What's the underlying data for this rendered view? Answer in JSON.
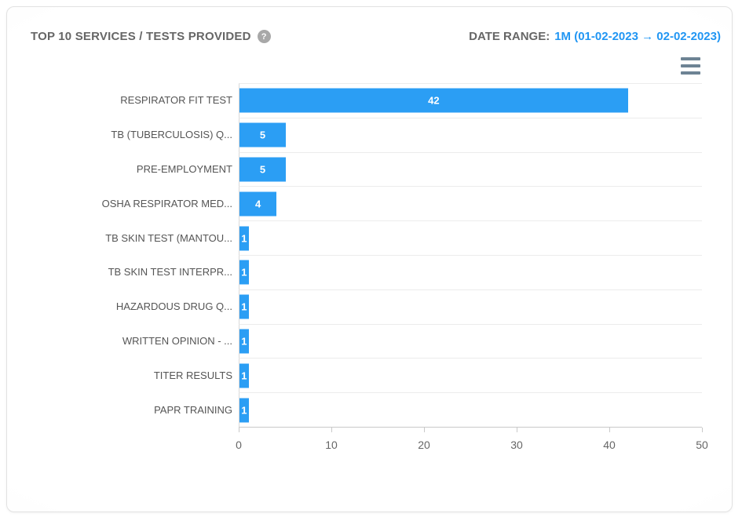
{
  "header": {
    "title": "TOP 10 SERVICES / TESTS PROVIDED",
    "help_icon": "?",
    "date_range_label": "DATE RANGE:",
    "date_range_value": "1M (01-02-2023 → 02-02-2023)"
  },
  "icons": {
    "help": "question-mark-circle",
    "context_menu": "hamburger-menu"
  },
  "colors": {
    "bar": "#2b9ef4",
    "accent_text": "#2196f3",
    "title_text": "#666666",
    "category_text": "#555555",
    "axis_line": "#c9c9c9",
    "grid_line": "#ececec",
    "menu_icon": "#6d8394"
  },
  "chart_data": {
    "type": "bar",
    "orientation": "horizontal",
    "title": "TOP 10 SERVICES / TESTS PROVIDED",
    "categories": [
      "RESPIRATOR FIT TEST",
      "TB (TUBERCULOSIS) Q...",
      "PRE-EMPLOYMENT",
      "OSHA RESPIRATOR MED...",
      "TB SKIN TEST (MANTOU...",
      "TB SKIN TEST INTERPR...",
      "HAZARDOUS DRUG Q...",
      "WRITTEN OPINION - ...",
      "TITER RESULTS",
      "PAPR TRAINING"
    ],
    "values": [
      42,
      5,
      5,
      4,
      1,
      1,
      1,
      1,
      1,
      1
    ],
    "xlabel": "",
    "ylabel": "",
    "xlim": [
      0,
      50
    ],
    "x_ticks": [
      0,
      10,
      20,
      30,
      40,
      50
    ],
    "grid": true,
    "data_labels": true,
    "legend": "none"
  }
}
